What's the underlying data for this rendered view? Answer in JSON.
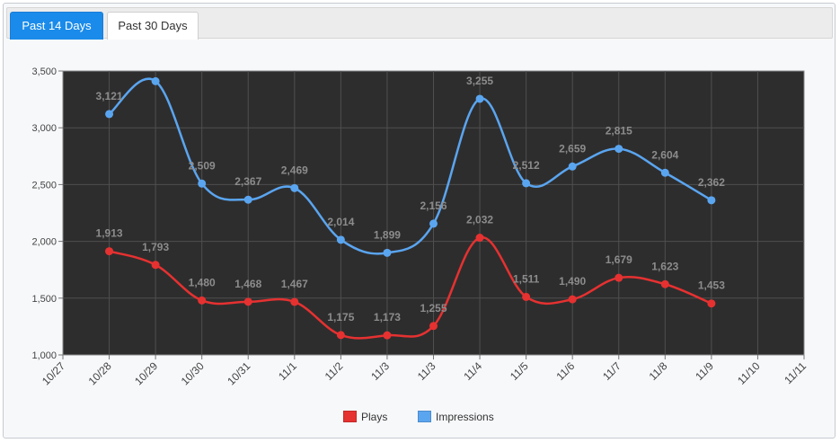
{
  "tabs": [
    {
      "label": "Past 14 Days",
      "active": true
    },
    {
      "label": "Past 30 Days",
      "active": false
    }
  ],
  "chart_data": {
    "type": "line",
    "categories": [
      "10/27",
      "10/28",
      "10/29",
      "10/30",
      "10/31",
      "11/1",
      "11/2",
      "11/3",
      "11/3",
      "11/4",
      "11/5",
      "11/6",
      "11/7",
      "11/8",
      "11/9",
      "11/10",
      "11/11"
    ],
    "ylim": [
      1000,
      3500
    ],
    "yticks": [
      1000,
      1500,
      2000,
      2500,
      3000,
      3500
    ],
    "ytick_labels": [
      "1,000",
      "1,500",
      "2,000",
      "2,500",
      "3,000",
      "3,500"
    ],
    "background": "#2e2d2d",
    "grid": true,
    "series": [
      {
        "name": "Impressions",
        "color": "#5aa5f0",
        "values": [
          null,
          3121,
          3410,
          2509,
          2367,
          2469,
          2014,
          1899,
          2156,
          3255,
          2512,
          2659,
          2815,
          2604,
          2362,
          null,
          null
        ],
        "labels": [
          "",
          "3,121",
          "",
          "2,509",
          "2,367",
          "2,469",
          "2,014",
          "1,899",
          "2,156",
          "3,255",
          "2,512",
          "2,659",
          "2,815",
          "2,604",
          "2,362",
          "",
          ""
        ]
      },
      {
        "name": "Plays",
        "color": "#e63131",
        "values": [
          null,
          1913,
          1793,
          1480,
          1468,
          1467,
          1175,
          1173,
          1255,
          2032,
          1511,
          1490,
          1679,
          1623,
          1453,
          null,
          null
        ],
        "labels": [
          "",
          "1,913",
          "1,793",
          "1,480",
          "1,468",
          "1,467",
          "1,175",
          "1,173",
          "1,255",
          "2,032",
          "1,511",
          "1,490",
          "1,679",
          "1,623",
          "1,453",
          "",
          ""
        ]
      }
    ],
    "legend": [
      {
        "name": "Plays",
        "color": "#e63131"
      },
      {
        "name": "Impressions",
        "color": "#5aa5f0"
      }
    ],
    "legend_position": "bottom-center"
  }
}
